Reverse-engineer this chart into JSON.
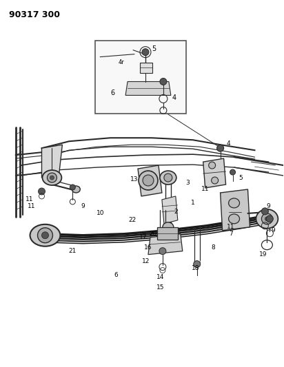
{
  "title": "90317 300",
  "bg_color": "#ffffff",
  "lc": "#2a2a2a",
  "fig_width": 4.12,
  "fig_height": 5.33,
  "dpi": 100
}
